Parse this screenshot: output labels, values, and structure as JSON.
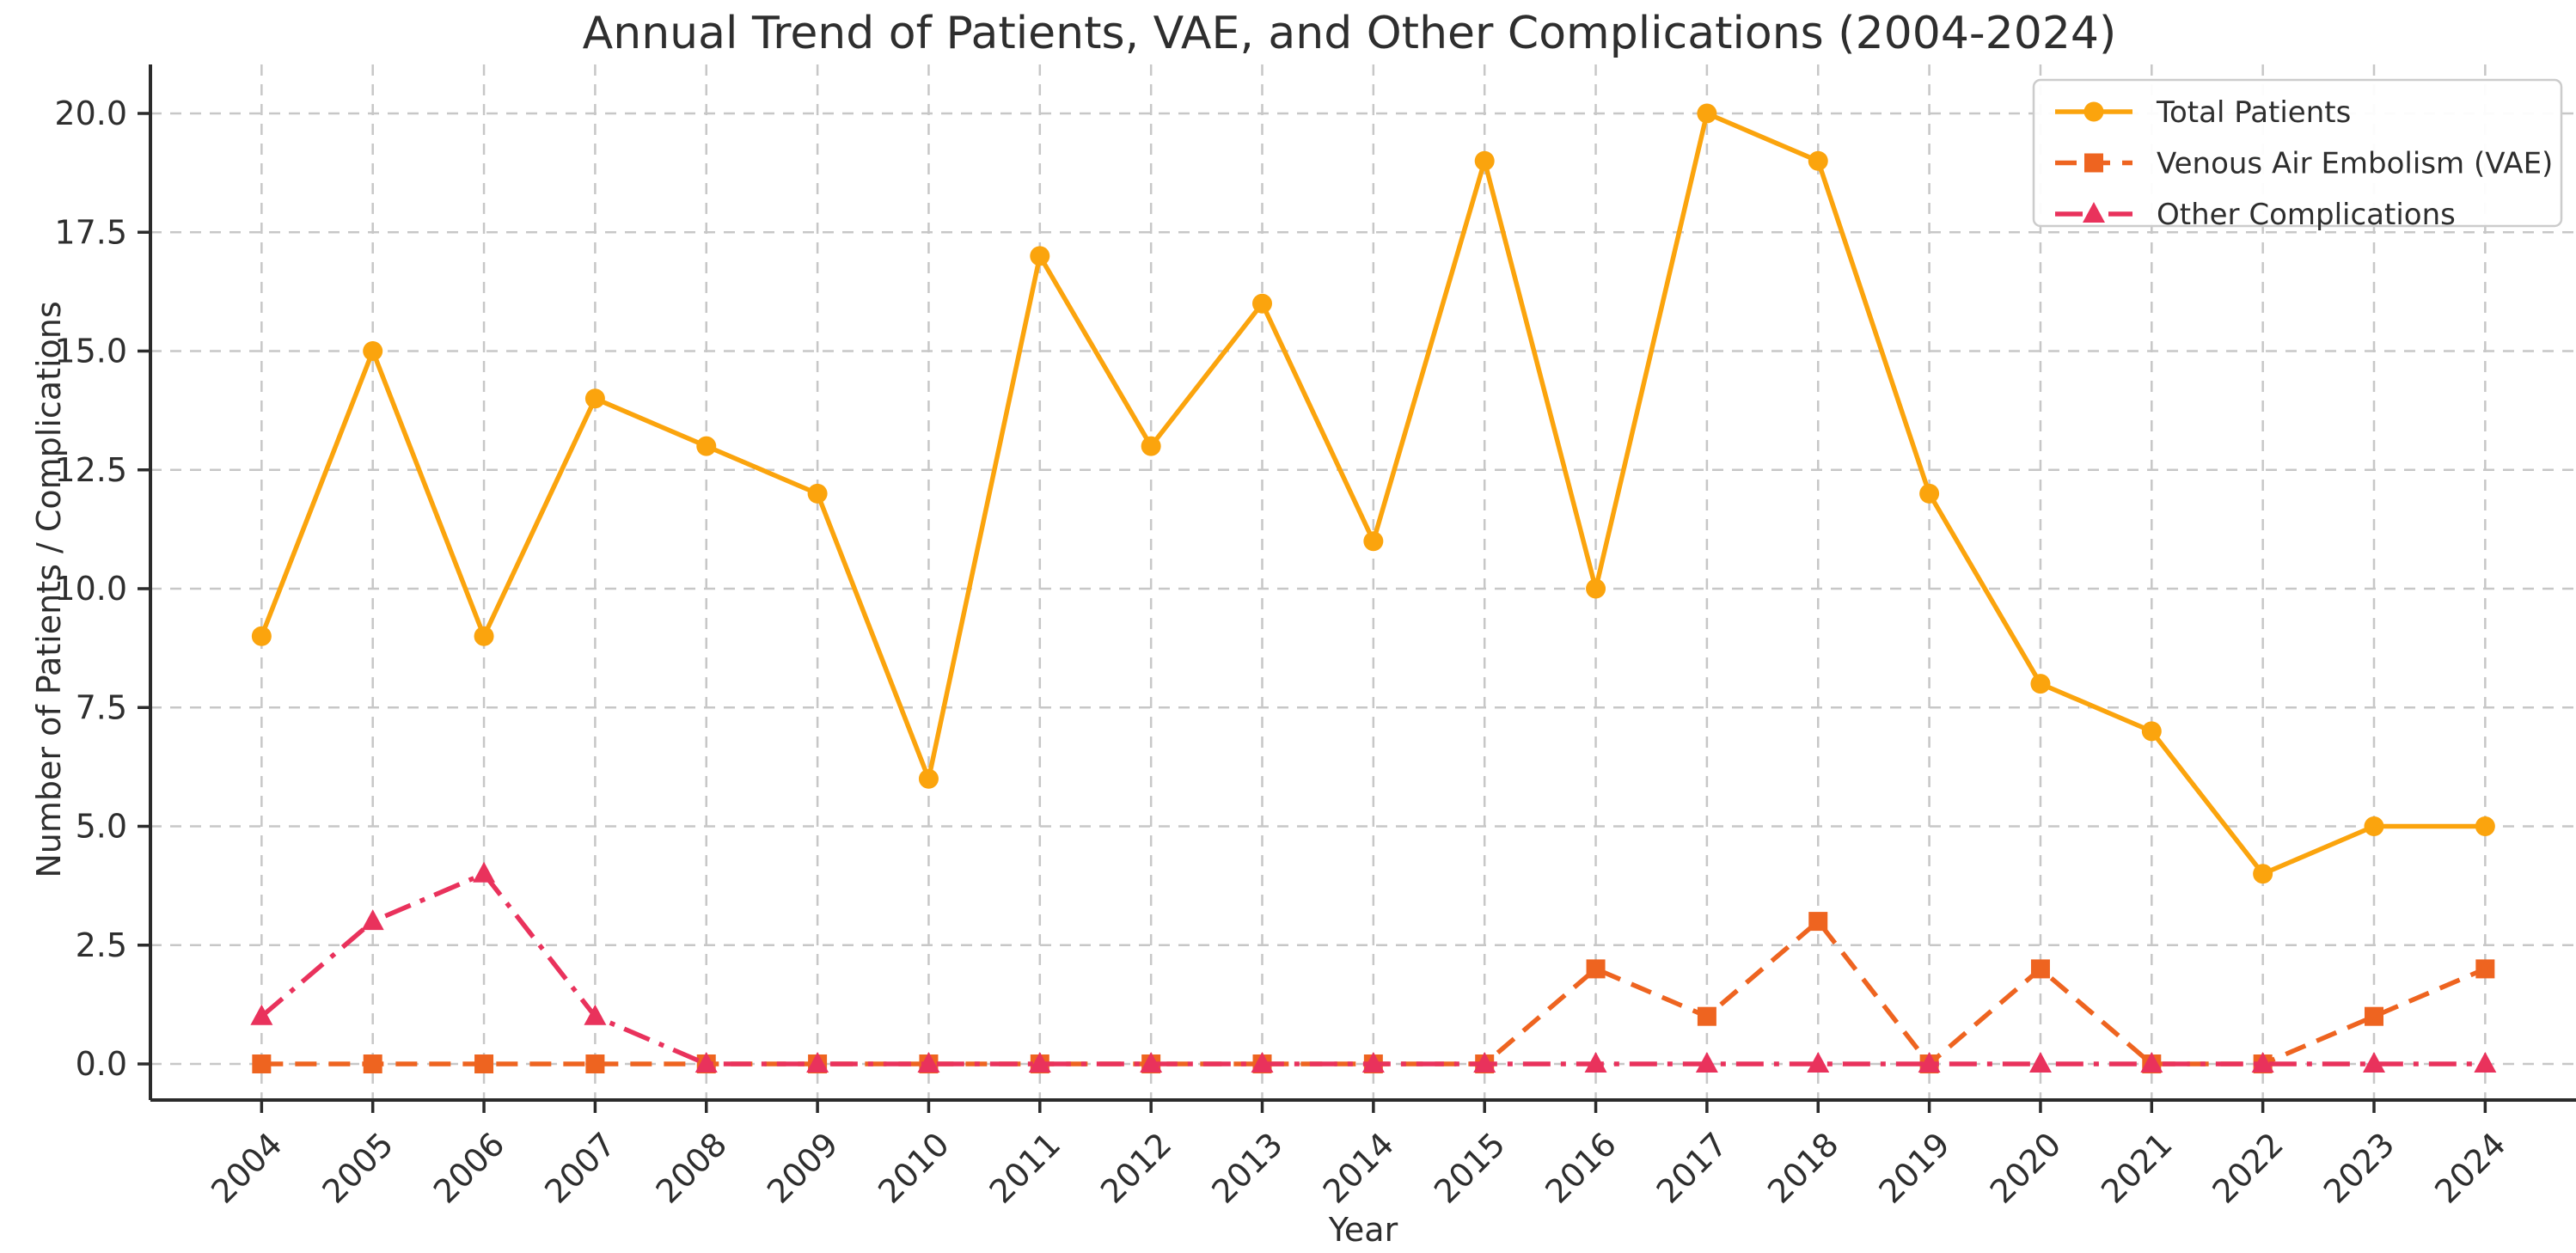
{
  "chart_data": {
    "type": "line",
    "title": "Annual Trend of Patients, VAE, and Other Complications (2004-2024)",
    "xlabel": "Year",
    "ylabel": "Number of Patients / Complications",
    "x": [
      2004,
      2005,
      2006,
      2007,
      2008,
      2009,
      2010,
      2011,
      2012,
      2013,
      2014,
      2015,
      2016,
      2017,
      2018,
      2019,
      2020,
      2021,
      2022,
      2023,
      2024
    ],
    "series": [
      {
        "name": "Total Patients",
        "color": "#FBA40D",
        "linestyle": "solid",
        "marker": "circle",
        "values": [
          9,
          15,
          9,
          14,
          13,
          12,
          6,
          17,
          13,
          16,
          11,
          19,
          10,
          20,
          19,
          12,
          8,
          7,
          4,
          5,
          5
        ]
      },
      {
        "name": "Venous Air Embolism (VAE)",
        "color": "#EE6420",
        "linestyle": "dashed",
        "marker": "square",
        "values": [
          0,
          0,
          0,
          0,
          0,
          0,
          0,
          0,
          0,
          0,
          0,
          0,
          2,
          1,
          3,
          0,
          2,
          0,
          0,
          1,
          2
        ]
      },
      {
        "name": "Other Complications",
        "color": "#E9325C",
        "linestyle": "dashdot",
        "marker": "triangle",
        "values": [
          1,
          3,
          4,
          1,
          0,
          0,
          0,
          0,
          0,
          0,
          0,
          0,
          0,
          0,
          0,
          0,
          0,
          0,
          0,
          0,
          0
        ]
      }
    ],
    "yticks": [
      0,
      2.5,
      5,
      7.5,
      10,
      12.5,
      15,
      17.5,
      20
    ],
    "ytick_labels": [
      "0.0",
      "2.5",
      "5.0",
      "7.5",
      "10.0",
      "12.5",
      "15.0",
      "17.5",
      "20.0"
    ],
    "ylim": [
      -0.8,
      21.05
    ],
    "xlim": [
      2003,
      2025
    ],
    "grid": true,
    "legend_position": "upper right"
  },
  "style": {
    "background": "#ffffff",
    "grid_color": "#c7c7c7",
    "axis_color": "#2b2b2b",
    "text_color": "#2e2e2e",
    "legend_border": "#cccccc",
    "legend_background": "#ffffff"
  }
}
